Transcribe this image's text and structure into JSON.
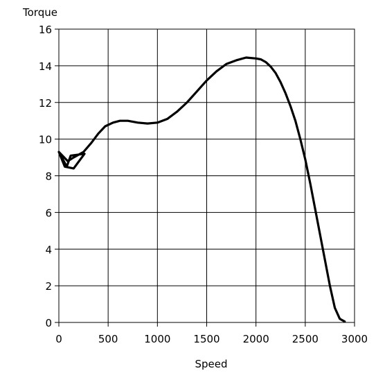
{
  "chart_data": {
    "type": "line",
    "title": "",
    "xlabel": "Speed",
    "ylabel": "Torque",
    "xlim": [
      0,
      3000
    ],
    "ylim": [
      0,
      16
    ],
    "xticks": [
      0,
      500,
      1000,
      1500,
      2000,
      2500,
      3000
    ],
    "yticks": [
      0,
      2,
      4,
      6,
      8,
      10,
      12,
      14,
      16
    ],
    "grid": true,
    "legend": "none",
    "line_color": "#000000",
    "series": [
      {
        "x": [
          0,
          60,
          150,
          260,
          120,
          80,
          0,
          90,
          150,
          250,
          330,
          400,
          470,
          550,
          620,
          700,
          800,
          900,
          1000,
          1100,
          1200,
          1300,
          1400,
          1500,
          1600,
          1700,
          1800,
          1900,
          2000,
          2050,
          2100,
          2150,
          2200,
          2250,
          2300,
          2350,
          2400,
          2450,
          2500,
          2550,
          2600,
          2650,
          2700,
          2750,
          2800,
          2850,
          2900
        ],
        "y": [
          9.3,
          8.5,
          8.4,
          9.2,
          9.1,
          8.5,
          9.3,
          8.8,
          9.0,
          9.3,
          9.8,
          10.3,
          10.7,
          10.9,
          11.0,
          11.0,
          10.9,
          10.85,
          10.9,
          11.1,
          11.5,
          12.0,
          12.6,
          13.2,
          13.7,
          14.1,
          14.3,
          14.45,
          14.4,
          14.35,
          14.2,
          13.95,
          13.6,
          13.1,
          12.5,
          11.8,
          11.0,
          10.0,
          8.9,
          7.6,
          6.2,
          4.8,
          3.4,
          2.0,
          0.8,
          0.2,
          0.05
        ]
      }
    ]
  }
}
